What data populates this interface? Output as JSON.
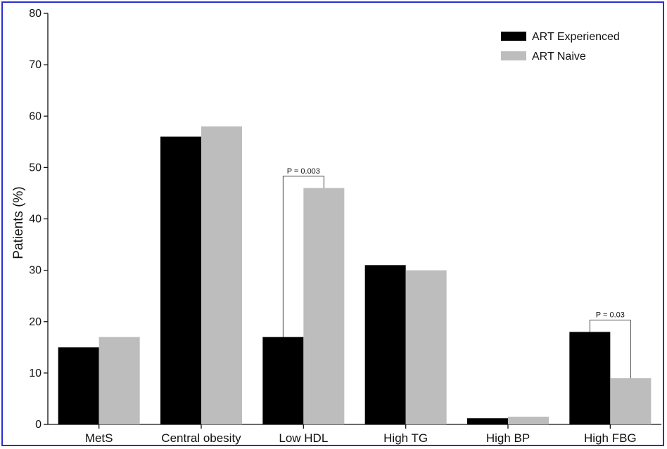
{
  "chart_data": {
    "type": "bar",
    "title": "",
    "xlabel": "",
    "ylabel": "Patients (%)",
    "ylim": [
      0,
      80
    ],
    "yticks": [
      0,
      10,
      20,
      30,
      40,
      50,
      60,
      70,
      80
    ],
    "categories": [
      "MetS",
      "Central obesity",
      "Low HDL",
      "High TG",
      "High BP",
      "High FBG"
    ],
    "series": [
      {
        "name": "ART Experienced",
        "color": "#000000",
        "values": [
          15,
          56,
          17,
          31,
          1.2,
          18
        ]
      },
      {
        "name": "ART Naive",
        "color": "#bdbdbd",
        "values": [
          17,
          58,
          46,
          30,
          1.5,
          9
        ]
      }
    ],
    "legend_position": "top-right",
    "grid": false,
    "annotations": [
      {
        "category": "Low HDL",
        "text": "P = 0.003"
      },
      {
        "category": "High FBG",
        "text": "P = 0.03"
      }
    ]
  }
}
